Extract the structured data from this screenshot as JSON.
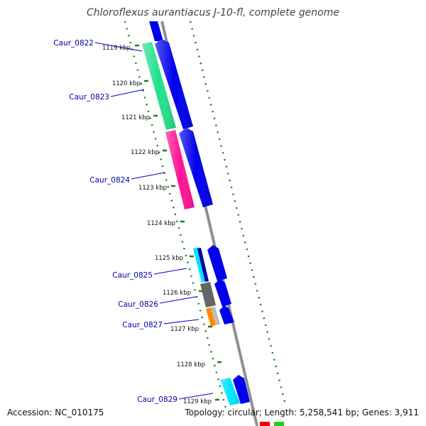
{
  "header": {
    "title": "Chloroflexus aurantiacus J-10-fl, complete genome"
  },
  "footer": {
    "accession": "Accession: NC_010175",
    "summary": "Topology: circular; Length: 5,258,541 bp; Genes: 3,911"
  },
  "axis": {
    "tick_labels": [
      "1119 kbp",
      "1120 kbp",
      "1121 kbp",
      "1122 kbp",
      "1123 kbp",
      "1124 kbp",
      "1125 kbp",
      "1126 kbp",
      "1127 kbp",
      "1128 kbp",
      "1129 kbp"
    ]
  },
  "genes": [
    {
      "label": "Caur_0822",
      "color": "#22e08a"
    },
    {
      "label": "Caur_0823",
      "color": "#22e08a"
    },
    {
      "label": "Caur_0824",
      "color": "#ff1493"
    },
    {
      "label": "Caur_0825",
      "color": "#00e5ff"
    },
    {
      "label": "Caur_0826",
      "color": "#666666"
    },
    {
      "label": "Caur_0827",
      "color": "#ff8c00"
    },
    {
      "label": "Caur_0829",
      "color": "#00e5ff"
    }
  ],
  "colors": {
    "backbone": "#8c8c8c",
    "tick": "#1a7f1a",
    "strand_arrow": "#0000ee",
    "label_link": "#0000cc"
  }
}
